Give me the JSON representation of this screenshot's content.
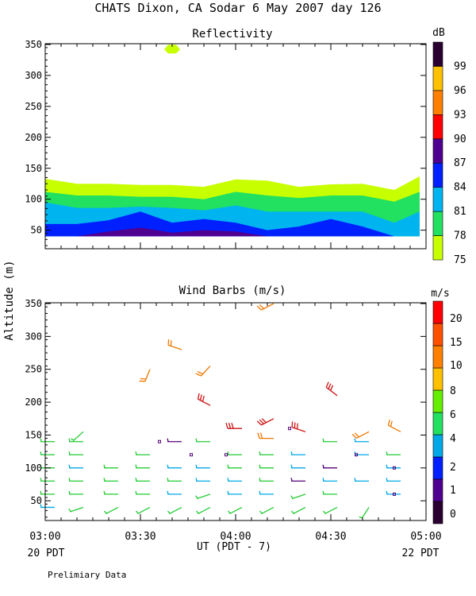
{
  "header": {
    "title": "CHATS Dixon, CA  Sodar    6 May 2007  day 126",
    "footer_note": "Prelimiary Data"
  },
  "colors": {
    "cb75": "#c8ff00",
    "cb78": "#22e060",
    "cb81": "#00b4f0",
    "cb84": "#0020ff",
    "cb87": "#500090",
    "cb90": "#ff0000",
    "cb93": "#ff8000",
    "cb96": "#ffc000",
    "cb99": "#2a0030",
    "barb_low": "#22cc33",
    "barb_mid": "#00a8e8",
    "barb_violet": "#550077",
    "barb_red": "#cc1111",
    "barb_orange": "#ee7700"
  },
  "chart_data": [
    {
      "type": "area",
      "title": "Reflectivity",
      "xlabel": "UT  (PDT - 7)",
      "ylabel": "Altitude (m)",
      "xlim": [
        0,
        120
      ],
      "ylim": [
        20,
        350
      ],
      "x_ticks": [
        0,
        30,
        60,
        90,
        120
      ],
      "x_tick_labels": [
        "03:00",
        "03:30",
        "04:00",
        "04:30",
        "05:00"
      ],
      "x_sub_labels": [
        "20 PDT",
        "",
        "",
        "",
        "22 PDT"
      ],
      "y_ticks": [
        50,
        100,
        150,
        200,
        250,
        300,
        350
      ],
      "colorbar": {
        "unit": "dB",
        "levels": [
          75,
          78,
          81,
          84,
          87,
          90,
          93,
          96,
          99
        ]
      },
      "x": [
        0,
        10,
        20,
        30,
        40,
        50,
        60,
        70,
        80,
        90,
        100,
        110,
        118
      ],
      "layers": [
        {
          "level": 75,
          "top": [
            133,
            125,
            125,
            123,
            123,
            120,
            132,
            130,
            120,
            124,
            125,
            115,
            137
          ]
        },
        {
          "level": 78,
          "top": [
            112,
            106,
            106,
            104,
            104,
            100,
            112,
            106,
            102,
            106,
            106,
            96,
            112
          ]
        },
        {
          "level": 81,
          "top": [
            95,
            86,
            86,
            88,
            86,
            82,
            90,
            80,
            80,
            80,
            80,
            62,
            80
          ]
        },
        {
          "level": 84,
          "top": [
            60,
            60,
            66,
            80,
            62,
            68,
            62,
            50,
            56,
            68,
            56,
            40,
            40
          ]
        },
        {
          "level": 87,
          "top": [
            40,
            40,
            48,
            54,
            46,
            50,
            48,
            40,
            40,
            40,
            40,
            40,
            40
          ]
        }
      ],
      "blobs": [
        {
          "x": 40,
          "y": 342,
          "level": 75
        }
      ]
    },
    {
      "type": "scatter",
      "title": "Wind Barbs (m/s)",
      "xlabel": "UT  (PDT - 7)",
      "ylabel": "Altitude (m)",
      "xlim": [
        0,
        120
      ],
      "ylim": [
        20,
        350
      ],
      "x_ticks": [
        0,
        30,
        60,
        90,
        120
      ],
      "x_tick_labels": [
        "03:00",
        "03:30",
        "04:00",
        "04:30",
        "05:00"
      ],
      "y_ticks": [
        50,
        100,
        150,
        200,
        250,
        300,
        350
      ],
      "colorbar": {
        "unit": "m/s",
        "levels": [
          0,
          1,
          2,
          4,
          6,
          8,
          10,
          15,
          20
        ],
        "colors": [
          "#2a0030",
          "#500090",
          "#0020ff",
          "#00a8e8",
          "#22e060",
          "#66ee00",
          "#ffc000",
          "#ff8000",
          "#ff5000",
          "#ff0000"
        ]
      },
      "columns_x": [
        3,
        12,
        23,
        33,
        43,
        52,
        62,
        72,
        82,
        92,
        102,
        112
      ],
      "barbs": [
        {
          "x": 3,
          "y": 140,
          "dir": 270,
          "spd": 4,
          "c": "#22cc33"
        },
        {
          "x": 3,
          "y": 120,
          "dir": 270,
          "spd": 4,
          "c": "#22cc33"
        },
        {
          "x": 3,
          "y": 100,
          "dir": 270,
          "spd": 4,
          "c": "#22cc33"
        },
        {
          "x": 3,
          "y": 80,
          "dir": 270,
          "spd": 4,
          "c": "#22cc33"
        },
        {
          "x": 3,
          "y": 60,
          "dir": 270,
          "spd": 4,
          "c": "#22cc33"
        },
        {
          "x": 3,
          "y": 40,
          "dir": 270,
          "spd": 3,
          "c": "#00a8e8"
        },
        {
          "x": 12,
          "y": 155,
          "dir": 225,
          "spd": 4,
          "c": "#22cc33"
        },
        {
          "x": 12,
          "y": 140,
          "dir": 270,
          "spd": 4,
          "c": "#22cc33"
        },
        {
          "x": 12,
          "y": 120,
          "dir": 270,
          "spd": 4,
          "c": "#22cc33"
        },
        {
          "x": 12,
          "y": 100,
          "dir": 270,
          "spd": 3,
          "c": "#00a8e8"
        },
        {
          "x": 12,
          "y": 80,
          "dir": 270,
          "spd": 4,
          "c": "#22cc33"
        },
        {
          "x": 12,
          "y": 60,
          "dir": 270,
          "spd": 4,
          "c": "#22cc33"
        },
        {
          "x": 12,
          "y": 40,
          "dir": 250,
          "spd": 4,
          "c": "#22cc33"
        },
        {
          "x": 23,
          "y": 100,
          "dir": 270,
          "spd": 4,
          "c": "#22cc33"
        },
        {
          "x": 23,
          "y": 80,
          "dir": 270,
          "spd": 4,
          "c": "#22cc33"
        },
        {
          "x": 23,
          "y": 60,
          "dir": 270,
          "spd": 4,
          "c": "#22cc33"
        },
        {
          "x": 23,
          "y": 40,
          "dir": 240,
          "spd": 4,
          "c": "#22cc33"
        },
        {
          "x": 33,
          "y": 250,
          "dir": 200,
          "spd": 10,
          "c": "#ee7700"
        },
        {
          "x": 33,
          "y": 120,
          "dir": 270,
          "spd": 4,
          "c": "#22cc33"
        },
        {
          "x": 33,
          "y": 100,
          "dir": 270,
          "spd": 4,
          "c": "#22cc33"
        },
        {
          "x": 33,
          "y": 80,
          "dir": 270,
          "spd": 4,
          "c": "#22cc33"
        },
        {
          "x": 33,
          "y": 60,
          "dir": 270,
          "spd": 4,
          "c": "#22cc33"
        },
        {
          "x": 33,
          "y": 40,
          "dir": 240,
          "spd": 4,
          "c": "#22cc33"
        },
        {
          "x": 43,
          "y": 280,
          "dir": 290,
          "spd": 10,
          "c": "#ee7700"
        },
        {
          "x": 43,
          "y": 140,
          "dir": 270,
          "spd": 1,
          "c": "#550077"
        },
        {
          "x": 43,
          "y": 100,
          "dir": 270,
          "spd": 3,
          "c": "#00a8e8"
        },
        {
          "x": 43,
          "y": 80,
          "dir": 270,
          "spd": 4,
          "c": "#22cc33"
        },
        {
          "x": 43,
          "y": 60,
          "dir": 270,
          "spd": 3,
          "c": "#00a8e8"
        },
        {
          "x": 43,
          "y": 40,
          "dir": 240,
          "spd": 4,
          "c": "#22cc33"
        },
        {
          "x": 52,
          "y": 255,
          "dir": 220,
          "spd": 10,
          "c": "#ee7700"
        },
        {
          "x": 52,
          "y": 195,
          "dir": 300,
          "spd": 15,
          "c": "#cc1111"
        },
        {
          "x": 52,
          "y": 140,
          "dir": 270,
          "spd": 4,
          "c": "#22cc33"
        },
        {
          "x": 52,
          "y": 100,
          "dir": 270,
          "spd": 3,
          "c": "#00a8e8"
        },
        {
          "x": 52,
          "y": 80,
          "dir": 270,
          "spd": 3,
          "c": "#00a8e8"
        },
        {
          "x": 52,
          "y": 60,
          "dir": 250,
          "spd": 4,
          "c": "#22cc33"
        },
        {
          "x": 52,
          "y": 40,
          "dir": 240,
          "spd": 4,
          "c": "#22cc33"
        },
        {
          "x": 62,
          "y": 160,
          "dir": 270,
          "spd": 15,
          "c": "#cc1111"
        },
        {
          "x": 62,
          "y": 120,
          "dir": 270,
          "spd": 4,
          "c": "#22cc33"
        },
        {
          "x": 62,
          "y": 100,
          "dir": 270,
          "spd": 4,
          "c": "#22cc33"
        },
        {
          "x": 62,
          "y": 80,
          "dir": 270,
          "spd": 3,
          "c": "#00a8e8"
        },
        {
          "x": 62,
          "y": 60,
          "dir": 270,
          "spd": 3,
          "c": "#00a8e8"
        },
        {
          "x": 62,
          "y": 40,
          "dir": 240,
          "spd": 4,
          "c": "#22cc33"
        },
        {
          "x": 72,
          "y": 350,
          "dir": 240,
          "spd": 10,
          "c": "#ee7700"
        },
        {
          "x": 72,
          "y": 175,
          "dir": 240,
          "spd": 15,
          "c": "#cc1111"
        },
        {
          "x": 72,
          "y": 145,
          "dir": 270,
          "spd": 10,
          "c": "#ee7700"
        },
        {
          "x": 72,
          "y": 120,
          "dir": 270,
          "spd": 4,
          "c": "#22cc33"
        },
        {
          "x": 72,
          "y": 100,
          "dir": 270,
          "spd": 4,
          "c": "#22cc33"
        },
        {
          "x": 72,
          "y": 80,
          "dir": 270,
          "spd": 4,
          "c": "#22cc33"
        },
        {
          "x": 72,
          "y": 60,
          "dir": 270,
          "spd": 3,
          "c": "#00a8e8"
        },
        {
          "x": 72,
          "y": 40,
          "dir": 240,
          "spd": 4,
          "c": "#22cc33"
        },
        {
          "x": 82,
          "y": 155,
          "dir": 290,
          "spd": 15,
          "c": "#cc1111"
        },
        {
          "x": 82,
          "y": 120,
          "dir": 270,
          "spd": 3,
          "c": "#00a8e8"
        },
        {
          "x": 82,
          "y": 100,
          "dir": 270,
          "spd": 3,
          "c": "#00a8e8"
        },
        {
          "x": 82,
          "y": 80,
          "dir": 270,
          "spd": 1,
          "c": "#550077"
        },
        {
          "x": 82,
          "y": 60,
          "dir": 250,
          "spd": 4,
          "c": "#22cc33"
        },
        {
          "x": 82,
          "y": 40,
          "dir": 240,
          "spd": 4,
          "c": "#22cc33"
        },
        {
          "x": 92,
          "y": 210,
          "dir": 310,
          "spd": 15,
          "c": "#cc1111"
        },
        {
          "x": 92,
          "y": 140,
          "dir": 270,
          "spd": 4,
          "c": "#22cc33"
        },
        {
          "x": 92,
          "y": 100,
          "dir": 270,
          "spd": 1,
          "c": "#550077"
        },
        {
          "x": 92,
          "y": 80,
          "dir": 270,
          "spd": 3,
          "c": "#00a8e8"
        },
        {
          "x": 92,
          "y": 60,
          "dir": 270,
          "spd": 4,
          "c": "#22cc33"
        },
        {
          "x": 92,
          "y": 40,
          "dir": 240,
          "spd": 4,
          "c": "#22cc33"
        },
        {
          "x": 102,
          "y": 155,
          "dir": 240,
          "spd": 10,
          "c": "#ee7700"
        },
        {
          "x": 102,
          "y": 140,
          "dir": 270,
          "spd": 3,
          "c": "#00a8e8"
        },
        {
          "x": 102,
          "y": 120,
          "dir": 270,
          "spd": 3,
          "c": "#00a8e8"
        },
        {
          "x": 102,
          "y": 80,
          "dir": 270,
          "spd": 3,
          "c": "#00a8e8"
        },
        {
          "x": 102,
          "y": 40,
          "dir": 210,
          "spd": 4,
          "c": "#22cc33"
        },
        {
          "x": 112,
          "y": 155,
          "dir": 300,
          "spd": 10,
          "c": "#ee7700"
        },
        {
          "x": 112,
          "y": 120,
          "dir": 270,
          "spd": 4,
          "c": "#22cc33"
        },
        {
          "x": 112,
          "y": 100,
          "dir": 270,
          "spd": 3,
          "c": "#00a8e8"
        },
        {
          "x": 112,
          "y": 80,
          "dir": 270,
          "spd": 3,
          "c": "#00a8e8"
        },
        {
          "x": 112,
          "y": 60,
          "dir": 270,
          "spd": 3,
          "c": "#00a8e8"
        }
      ],
      "calm": [
        {
          "x": 36,
          "y": 140
        },
        {
          "x": 46,
          "y": 120
        },
        {
          "x": 57,
          "y": 120
        },
        {
          "x": 77,
          "y": 160
        },
        {
          "x": 98,
          "y": 120
        },
        {
          "x": 110,
          "y": 100
        },
        {
          "x": 110,
          "y": 60
        }
      ]
    }
  ]
}
